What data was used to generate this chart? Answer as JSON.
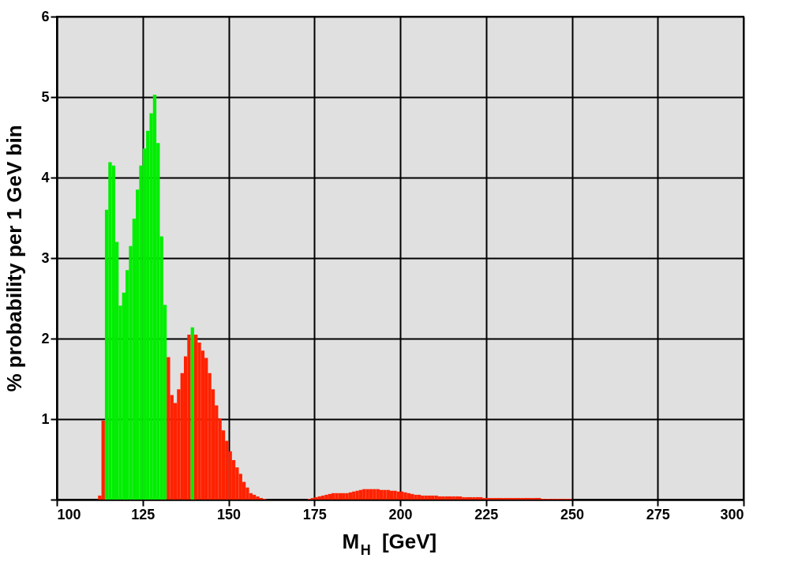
{
  "chart_data": {
    "type": "histogram",
    "xlabel": "M$_{H}$ [GeV]",
    "ylabel": "% probability per 1 GeV bin",
    "bins": [
      112,
      113,
      114,
      115,
      116,
      117,
      118,
      119,
      120,
      121,
      122,
      123,
      124,
      125,
      126,
      127,
      128,
      129,
      130,
      131,
      132,
      133,
      134,
      135,
      136,
      137,
      138,
      139,
      140,
      141,
      142,
      143,
      144,
      145,
      146,
      147,
      148,
      149,
      150,
      151,
      152,
      153,
      154,
      155,
      156,
      157,
      158,
      159,
      160,
      161,
      162,
      163,
      164,
      165,
      166,
      167,
      168,
      169,
      170,
      171,
      172,
      173,
      174,
      175,
      176,
      177,
      178,
      179,
      180,
      181,
      182,
      183,
      184,
      185,
      186,
      187,
      188,
      189,
      190,
      191,
      192,
      193,
      194,
      195,
      196,
      197,
      198,
      199,
      200,
      201,
      202,
      203,
      204,
      205,
      206,
      207,
      208,
      209,
      210,
      211,
      212,
      213,
      214,
      215,
      216,
      217,
      218,
      219,
      220,
      221,
      222,
      223,
      224,
      225,
      226,
      227,
      228,
      229,
      230,
      231,
      232,
      233,
      234,
      235,
      236,
      237,
      238,
      239,
      240,
      241,
      242,
      243,
      244,
      245,
      246,
      247,
      248,
      249,
      250
    ],
    "values": [
      0.05,
      0.98,
      3.6,
      4.19,
      4.15,
      3.2,
      2.41,
      2.57,
      2.85,
      3.15,
      3.49,
      3.85,
      4.15,
      4.36,
      4.58,
      4.8,
      5.03,
      4.43,
      3.27,
      2.42,
      1.77,
      1.3,
      1.2,
      1.37,
      1.57,
      1.78,
      2.05,
      2.14,
      2.05,
      1.95,
      1.85,
      1.76,
      1.57,
      1.37,
      1.17,
      1.01,
      0.86,
      0.73,
      0.6,
      0.49,
      0.4,
      0.32,
      0.22,
      0.15,
      0.08,
      0.06,
      0.04,
      0.02,
      0.01,
      null,
      null,
      null,
      null,
      null,
      null,
      null,
      null,
      null,
      null,
      null,
      null,
      0.01,
      0.02,
      0.03,
      0.04,
      0.05,
      0.06,
      0.07,
      0.08,
      0.08,
      0.08,
      0.08,
      0.08,
      0.09,
      0.1,
      0.11,
      0.12,
      0.13,
      0.13,
      0.13,
      0.13,
      0.13,
      0.12,
      0.12,
      0.12,
      0.11,
      0.11,
      0.1,
      0.1,
      0.09,
      0.08,
      0.07,
      0.06,
      0.06,
      0.05,
      0.05,
      0.05,
      0.05,
      0.05,
      0.04,
      0.04,
      0.04,
      0.04,
      0.04,
      0.04,
      0.04,
      0.03,
      0.03,
      0.03,
      0.03,
      0.03,
      0.03,
      0.02,
      0.02,
      0.02,
      0.02,
      0.02,
      0.02,
      0.02,
      0.02,
      0.02,
      0.02,
      0.02,
      0.02,
      0.02,
      0.02,
      0.02,
      0.02,
      0.02,
      0.01,
      0.01,
      0.01,
      0.01,
      0.01,
      0.01,
      0.01,
      0.01,
      0.01
    ],
    "colors": [
      "#ff2200",
      "#ff2200",
      "#00ee00",
      "#00ee00",
      "#00ee00",
      "#00ee00",
      "#00ee00",
      "#00ee00",
      "#00ee00",
      "#00ee00",
      "#00ee00",
      "#00ee00",
      "#00ee00",
      "#00ee00",
      "#00ee00",
      "#00ee00",
      "#00ee00",
      "#00ee00",
      "#00ee00",
      "#00ee00",
      "#ff2200",
      "#ff2200",
      "#ff2200",
      "#ff2200",
      "#ff2200",
      "#ff2200",
      "#ff2200",
      "#00ee00",
      "#ff2200",
      "#ff2200",
      "#ff2200",
      "#ff2200",
      "#ff2200",
      "#ff2200",
      "#ff2200",
      "#ff2200",
      "#ff2200",
      "#ff2200",
      "#ff2200",
      "#ff2200",
      "#ff2200",
      "#ff2200",
      "#ff2200",
      "#ff2200",
      "#ff2200",
      "#ff2200",
      "#ff2200",
      "#ff2200",
      "#ff2200",
      "#ff2200",
      "#ff2200",
      "#ff2200",
      "#ff2200",
      "#ff2200",
      "#ff2200",
      "#ff2200",
      "#ff2200",
      "#ff2200",
      "#ff2200",
      "#ff2200",
      "#ff2200",
      "#ff2200",
      "#ff2200",
      "#ff2200",
      "#ff2200",
      "#ff2200",
      "#ff2200",
      "#ff2200",
      "#ff2200",
      "#ff2200",
      "#ff2200",
      "#ff2200",
      "#ff2200",
      "#ff2200",
      "#ff2200",
      "#ff2200",
      "#ff2200",
      "#ff2200",
      "#ff2200",
      "#ff2200",
      "#ff2200",
      "#ff2200",
      "#ff2200",
      "#ff2200",
      "#ff2200",
      "#ff2200",
      "#ff2200",
      "#ff2200",
      "#ff2200",
      "#ff2200",
      "#ff2200",
      "#ff2200",
      "#ff2200",
      "#ff2200",
      "#ff2200",
      "#ff2200",
      "#ff2200",
      "#ff2200",
      "#ff2200",
      "#ff2200",
      "#ff2200",
      "#ff2200",
      "#ff2200",
      "#ff2200",
      "#ff2200",
      "#ff2200",
      "#ff2200",
      "#ff2200",
      "#ff2200",
      "#ff2200",
      "#ff2200",
      "#ff2200",
      "#ff2200",
      "#ff2200",
      "#ff2200",
      "#ff2200",
      "#ff2200",
      "#ff2200",
      "#ff2200",
      "#ff2200",
      "#ff2200",
      "#ff2200",
      "#ff2200",
      "#ff2200",
      "#ff2200",
      "#ff2200",
      "#ff2200",
      "#ff2200",
      "#ff2200",
      "#ff2200",
      "#ff2200",
      "#ff2200",
      "#ff2200",
      "#ff2200",
      "#ff2200",
      "#ff2200",
      "#ff2200",
      "#ff2200"
    ],
    "xlim": [
      100,
      300
    ],
    "xticks": [
      100,
      125,
      150,
      175,
      200,
      225,
      250,
      275,
      300
    ],
    "ylim": [
      0,
      6
    ],
    "yticks": [
      {
        "value": 0,
        "label": null
      },
      1,
      2,
      3,
      4,
      5,
      6
    ],
    "grid": true,
    "legend": false
  }
}
